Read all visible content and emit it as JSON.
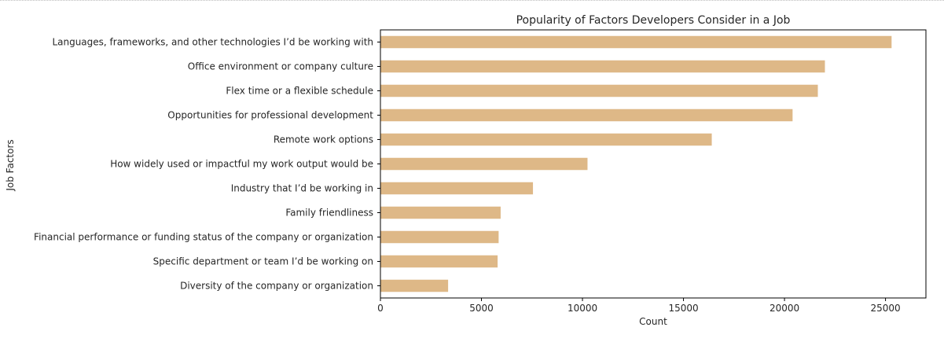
{
  "chart_data": {
    "type": "bar",
    "orientation": "horizontal",
    "title": "Popularity of Factors Developers Consider in a Job",
    "xlabel": "Count",
    "ylabel": "Job Factors",
    "xlim": [
      0,
      27000
    ],
    "xticks": [
      0,
      5000,
      10000,
      15000,
      20000,
      25000
    ],
    "xtick_labels": [
      "0",
      "5000",
      "10000",
      "15000",
      "20000",
      "25000"
    ],
    "bar_color": "#deb887",
    "grid": false,
    "legend": "none",
    "categories": [
      "Languages, frameworks, and other technologies I’d be working with",
      "Office environment or company culture",
      "Flex time or a flexible schedule",
      "Opportunities for professional development",
      "Remote work options",
      "How widely used or impactful my work output would be",
      "Industry that I’d be working in",
      "Family friendliness",
      "Financial performance or funding status of the company or organization",
      "Specific department or team I’d be working on",
      "Diversity of the company or organization"
    ],
    "values": [
      25300,
      22000,
      21650,
      20400,
      16400,
      10250,
      7550,
      5950,
      5850,
      5800,
      3350
    ]
  }
}
